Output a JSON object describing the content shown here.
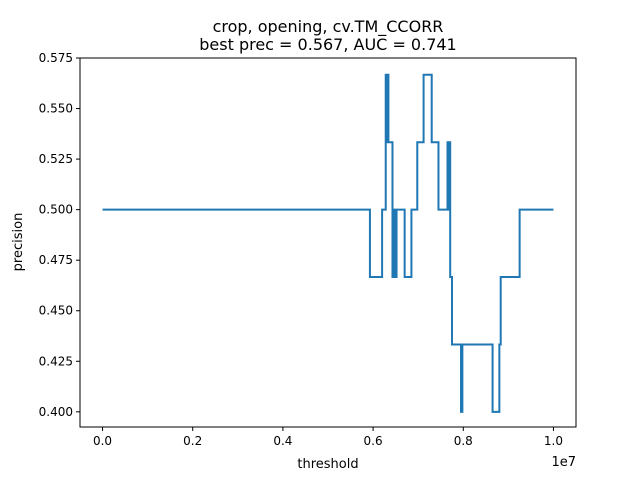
{
  "chart_data": {
    "type": "line",
    "title_line1": "crop, opening, cv.TM_CCORR",
    "title_line2": "best prec = 0.567, AUC = 0.741",
    "xlabel": "threshold",
    "ylabel": "precision",
    "x_offset_label": "1e7",
    "xlim": [
      -500000.0,
      10500000.0
    ],
    "ylim": [
      0.3925,
      0.575
    ],
    "x_ticks": [
      0,
      2000000.0,
      4000000.0,
      6000000.0,
      8000000.0,
      10000000.0
    ],
    "x_tick_labels": [
      "0.0",
      "0.2",
      "0.4",
      "0.6",
      "0.8",
      "1.0"
    ],
    "y_ticks": [
      0.4,
      0.425,
      0.45,
      0.475,
      0.5,
      0.525,
      0.55,
      0.575
    ],
    "y_tick_labels": [
      "0.400",
      "0.425",
      "0.450",
      "0.475",
      "0.500",
      "0.525",
      "0.550",
      "0.575"
    ],
    "grid": false,
    "legend": "none",
    "line_color": "#1f77b4",
    "series": [
      {
        "step_points": [
          [
            0,
            0.5
          ],
          [
            5930000.0,
            0.5
          ],
          [
            5930000.0,
            0.4667
          ],
          [
            6200000.0,
            0.4667
          ],
          [
            6200000.0,
            0.5
          ],
          [
            6280000.0,
            0.5
          ],
          [
            6280000.0,
            0.5667
          ],
          [
            6300000.0,
            0.5667
          ],
          [
            6300000.0,
            0.5333
          ],
          [
            6320000.0,
            0.5333
          ],
          [
            6320000.0,
            0.5667
          ],
          [
            6340000.0,
            0.5667
          ],
          [
            6340000.0,
            0.5333
          ],
          [
            6430000.0,
            0.5333
          ],
          [
            6430000.0,
            0.4667
          ],
          [
            6470000.0,
            0.4667
          ],
          [
            6470000.0,
            0.5
          ],
          [
            6500000.0,
            0.5
          ],
          [
            6500000.0,
            0.4667
          ],
          [
            6520000.0,
            0.4667
          ],
          [
            6520000.0,
            0.5
          ],
          [
            6700000.0,
            0.5
          ],
          [
            6700000.0,
            0.4667
          ],
          [
            6850000.0,
            0.4667
          ],
          [
            6850000.0,
            0.5
          ],
          [
            6980000.0,
            0.5
          ],
          [
            6980000.0,
            0.5333
          ],
          [
            7120000.0,
            0.5333
          ],
          [
            7120000.0,
            0.5667
          ],
          [
            7300000.0,
            0.5667
          ],
          [
            7300000.0,
            0.5333
          ],
          [
            7450000.0,
            0.5333
          ],
          [
            7450000.0,
            0.5
          ],
          [
            7650000.0,
            0.5
          ],
          [
            7650000.0,
            0.5333
          ],
          [
            7670000.0,
            0.5333
          ],
          [
            7670000.0,
            0.5
          ],
          [
            7690000.0,
            0.5
          ],
          [
            7690000.0,
            0.5333
          ],
          [
            7710000.0,
            0.5333
          ],
          [
            7710000.0,
            0.4667
          ],
          [
            7750000.0,
            0.4667
          ],
          [
            7750000.0,
            0.4333
          ],
          [
            7950000.0,
            0.4333
          ],
          [
            7950000.0,
            0.4
          ],
          [
            7980000.0,
            0.4
          ],
          [
            7980000.0,
            0.4333
          ],
          [
            8650000.0,
            0.4333
          ],
          [
            8650000.0,
            0.4
          ],
          [
            8800000.0,
            0.4
          ],
          [
            8800000.0,
            0.4333
          ],
          [
            8830000.0,
            0.4333
          ],
          [
            8830000.0,
            0.4667
          ],
          [
            9250000.0,
            0.4667
          ],
          [
            9250000.0,
            0.5
          ],
          [
            10000000.0,
            0.5
          ]
        ]
      }
    ]
  }
}
